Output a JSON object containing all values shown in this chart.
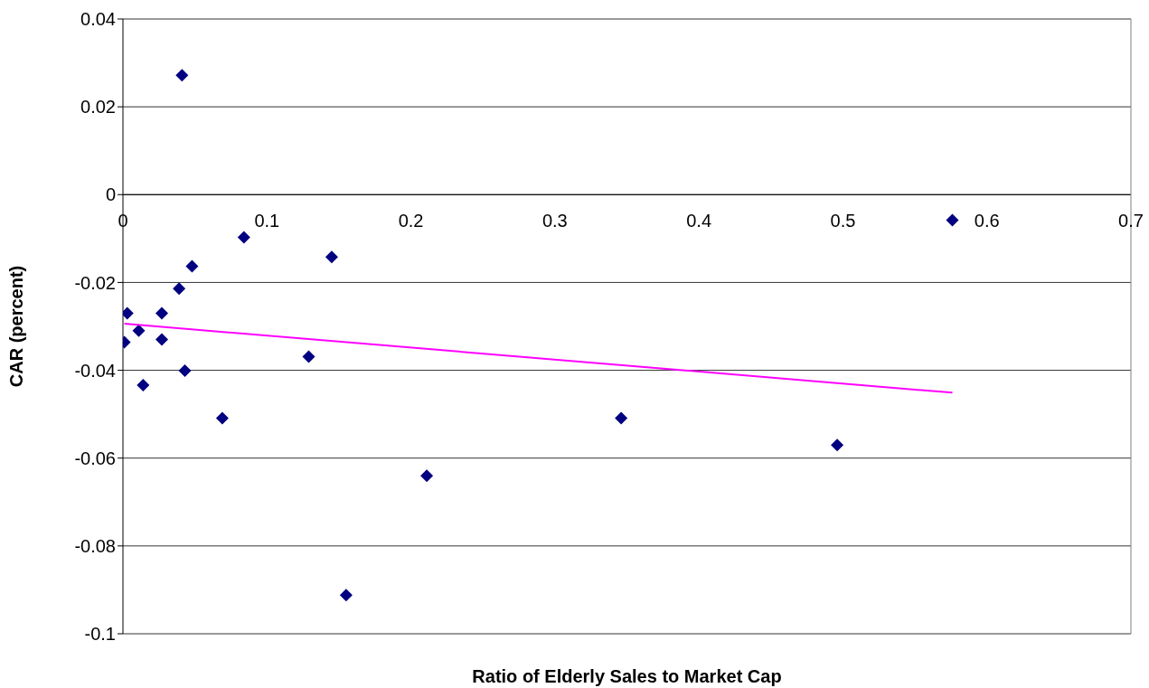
{
  "chart_data": {
    "type": "scatter",
    "xlabel": "Ratio of Elderly Sales to Market Cap",
    "ylabel": "CAR (percent)",
    "series": [
      {
        "color": "#000080",
        "marker": "diamond",
        "x": [
          0.001,
          0.003,
          0.011,
          0.014,
          0.027,
          0.027,
          0.039,
          0.041,
          0.043,
          0.048,
          0.069,
          0.084,
          0.129,
          0.145,
          0.155,
          0.211,
          0.346,
          0.496,
          0.576
        ],
        "values": [
          -0.0336,
          -0.027,
          -0.031,
          -0.0434,
          -0.027,
          -0.033,
          -0.0214,
          0.0272,
          -0.0401,
          -0.0163,
          -0.0509,
          -0.0097,
          -0.0369,
          -0.0142,
          -0.0912,
          -0.064,
          -0.0509,
          -0.057,
          -0.0058
        ]
      },
      {
        "type": "line",
        "marker": "none",
        "color": "#ff00ff",
        "x": [
          0.001,
          0.576
        ],
        "values": [
          -0.0294,
          -0.0451
        ]
      }
    ],
    "grid": "y",
    "xlim": [
      0,
      0.7
    ],
    "ylim": [
      -0.1,
      0.04
    ],
    "xticks": [
      0,
      0.1,
      0.2,
      0.3,
      0.4,
      0.5,
      0.6,
      0.7
    ],
    "yticks": [
      -0.1,
      -0.08,
      -0.06,
      -0.04,
      -0.02,
      0,
      0.02,
      0.04
    ]
  }
}
